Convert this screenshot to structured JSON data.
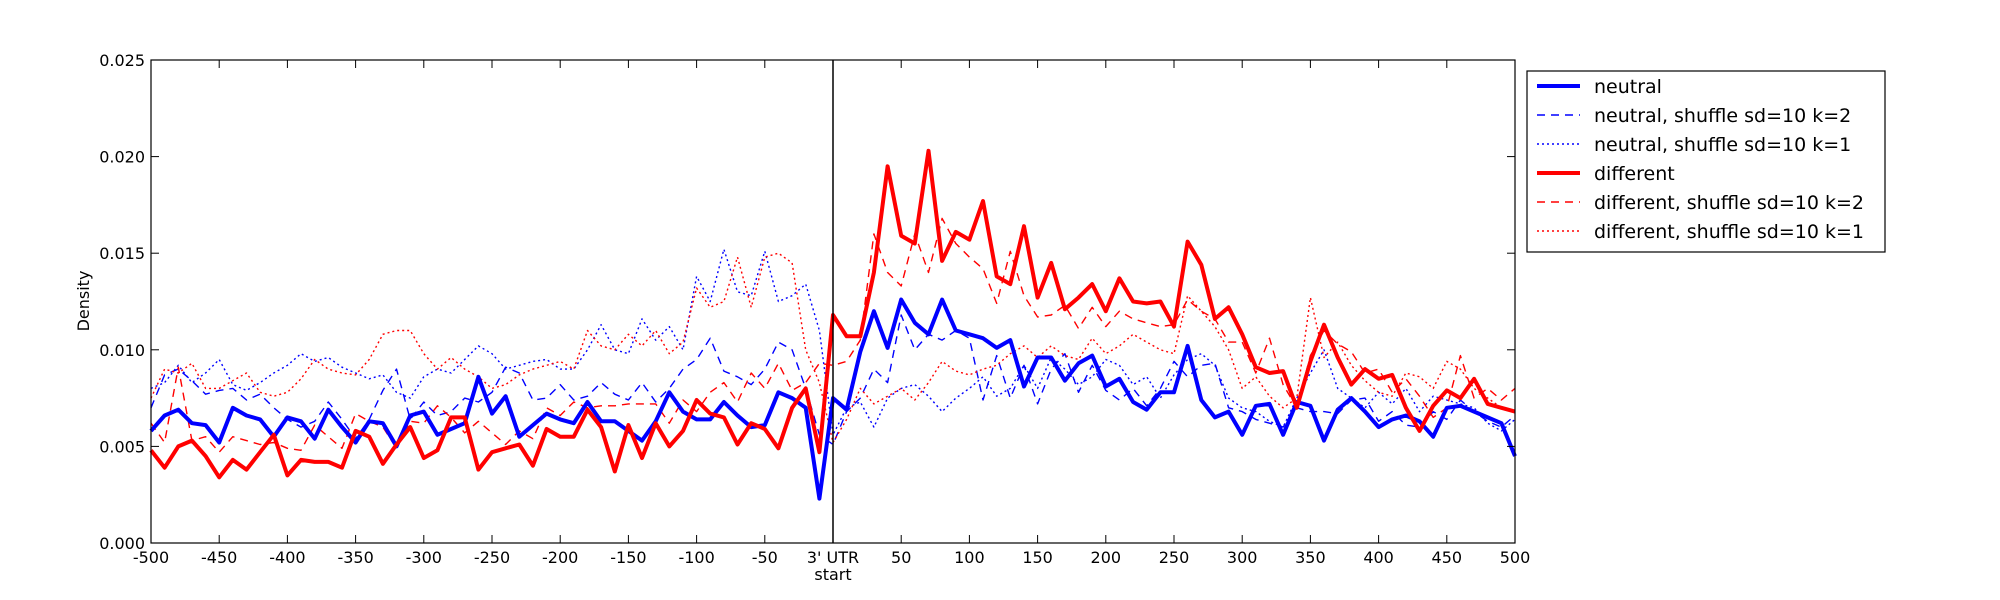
{
  "chart_data": {
    "type": "line",
    "title": "",
    "xlabel": "",
    "ylabel": "Density",
    "xlim": [
      -500,
      500
    ],
    "ylim": [
      0,
      0.025
    ],
    "x_ticks": [
      {
        "value": -500,
        "label": "-500"
      },
      {
        "value": -450,
        "label": "-450"
      },
      {
        "value": -400,
        "label": "-400"
      },
      {
        "value": -350,
        "label": "-350"
      },
      {
        "value": -300,
        "label": "-300"
      },
      {
        "value": -250,
        "label": "-250"
      },
      {
        "value": -200,
        "label": "-200"
      },
      {
        "value": -150,
        "label": "-150"
      },
      {
        "value": -100,
        "label": "-100"
      },
      {
        "value": -50,
        "label": "-50"
      },
      {
        "value": 0,
        "label": "3' UTR"
      },
      {
        "value": 50,
        "label": "50"
      },
      {
        "value": 100,
        "label": "100"
      },
      {
        "value": 150,
        "label": "150"
      },
      {
        "value": 200,
        "label": "200"
      },
      {
        "value": 250,
        "label": "250"
      },
      {
        "value": 300,
        "label": "300"
      },
      {
        "value": 350,
        "label": "350"
      },
      {
        "value": 400,
        "label": "400"
      },
      {
        "value": 450,
        "label": "450"
      },
      {
        "value": 500,
        "label": "500"
      }
    ],
    "x_center_sublabel": "start",
    "y_ticks": [
      {
        "value": 0,
        "label": "0.000"
      },
      {
        "value": 0.005,
        "label": "0.005"
      },
      {
        "value": 0.01,
        "label": "0.010"
      },
      {
        "value": 0.015,
        "label": "0.015"
      },
      {
        "value": 0.02,
        "label": "0.020"
      },
      {
        "value": 0.025,
        "label": "0.025"
      }
    ],
    "vline_x": 0,
    "grid": false,
    "legend_position": "outside right, top",
    "x": [
      -500,
      -490,
      -480,
      -470,
      -460,
      -450,
      -440,
      -430,
      -420,
      -410,
      -400,
      -390,
      -380,
      -370,
      -360,
      -350,
      -340,
      -330,
      -320,
      -310,
      -300,
      -290,
      -280,
      -270,
      -260,
      -250,
      -240,
      -230,
      -220,
      -210,
      -200,
      -190,
      -180,
      -170,
      -160,
      -150,
      -140,
      -130,
      -120,
      -110,
      -100,
      -90,
      -80,
      -70,
      -60,
      -50,
      -40,
      -30,
      -20,
      -10,
      0,
      10,
      20,
      30,
      40,
      50,
      60,
      70,
      80,
      90,
      100,
      110,
      120,
      130,
      140,
      150,
      160,
      170,
      180,
      190,
      200,
      210,
      220,
      230,
      240,
      250,
      260,
      270,
      280,
      290,
      300,
      310,
      320,
      330,
      340,
      350,
      360,
      370,
      380,
      390,
      400,
      410,
      420,
      430,
      440,
      450,
      460,
      470,
      480,
      490,
      500
    ],
    "series": [
      {
        "name": "neutral",
        "color": "#0000ff",
        "line_style": "solid-thick",
        "values": [
          0.0058,
          0.0066,
          0.0069,
          0.0062,
          0.0061,
          0.0052,
          0.007,
          0.0066,
          0.0064,
          0.0055,
          0.0065,
          0.0063,
          0.0054,
          0.0069,
          0.006,
          0.0052,
          0.0063,
          0.0062,
          0.005,
          0.0066,
          0.0068,
          0.0056,
          0.0059,
          0.0062,
          0.0086,
          0.0067,
          0.0076,
          0.0055,
          0.0061,
          0.0067,
          0.0064,
          0.0062,
          0.0073,
          0.0063,
          0.0063,
          0.0058,
          0.0053,
          0.0063,
          0.0078,
          0.0068,
          0.0064,
          0.0064,
          0.0073,
          0.0066,
          0.006,
          0.0061,
          0.0078,
          0.0075,
          0.007,
          0.0023,
          0.0075,
          0.0069,
          0.0099,
          0.012,
          0.0101,
          0.0126,
          0.0114,
          0.0108,
          0.0126,
          0.011,
          0.0108,
          0.0106,
          0.0101,
          0.0105,
          0.0081,
          0.0096,
          0.0096,
          0.0084,
          0.0093,
          0.0097,
          0.0081,
          0.0085,
          0.0073,
          0.0069,
          0.0078,
          0.0078,
          0.0102,
          0.0074,
          0.0065,
          0.0068,
          0.0056,
          0.0071,
          0.0072,
          0.0056,
          0.0073,
          0.0071,
          0.0053,
          0.0069,
          0.0075,
          0.0068,
          0.006,
          0.0064,
          0.0066,
          0.0063,
          0.0055,
          0.007,
          0.0071,
          0.0068,
          0.0065,
          0.0062,
          0.0045
        ]
      },
      {
        "name": "neutral, shuffle sd=10 k=2",
        "color": "#0000ff",
        "line_style": "dashed",
        "values": [
          0.007,
          0.0087,
          0.009,
          0.0084,
          0.0077,
          0.0079,
          0.008,
          0.0074,
          0.0077,
          0.007,
          0.0064,
          0.006,
          0.0063,
          0.0073,
          0.0064,
          0.0054,
          0.0064,
          0.0079,
          0.009,
          0.0064,
          0.0073,
          0.0066,
          0.0068,
          0.0075,
          0.0073,
          0.0078,
          0.0091,
          0.0088,
          0.0074,
          0.0075,
          0.0082,
          0.0074,
          0.0076,
          0.0083,
          0.0077,
          0.0074,
          0.0083,
          0.0073,
          0.008,
          0.009,
          0.0095,
          0.0106,
          0.0089,
          0.0086,
          0.0082,
          0.009,
          0.0104,
          0.01,
          0.008,
          0.0056,
          0.0051,
          0.0068,
          0.0075,
          0.009,
          0.0083,
          0.0118,
          0.01,
          0.0108,
          0.0105,
          0.011,
          0.0106,
          0.0074,
          0.0097,
          0.0075,
          0.0092,
          0.0072,
          0.009,
          0.0098,
          0.0078,
          0.0092,
          0.0079,
          0.0074,
          0.008,
          0.0071,
          0.008,
          0.0094,
          0.0086,
          0.0092,
          0.0093,
          0.007,
          0.0068,
          0.0064,
          0.0062,
          0.006,
          0.007,
          0.0068,
          0.0068,
          0.0067,
          0.0074,
          0.0075,
          0.0063,
          0.0068,
          0.0061,
          0.006,
          0.0068,
          0.0064,
          0.0074,
          0.0068,
          0.0063,
          0.006,
          0.0066
        ]
      },
      {
        "name": "neutral, shuffle sd=10 k=1",
        "color": "#0000ff",
        "line_style": "dotted",
        "values": [
          0.008,
          0.0083,
          0.0092,
          0.0083,
          0.0088,
          0.0095,
          0.0082,
          0.0079,
          0.0083,
          0.0088,
          0.0092,
          0.0098,
          0.0094,
          0.0096,
          0.0091,
          0.0088,
          0.0085,
          0.0087,
          0.0078,
          0.0075,
          0.0086,
          0.009,
          0.0088,
          0.0095,
          0.0102,
          0.0098,
          0.009,
          0.0092,
          0.0094,
          0.0095,
          0.009,
          0.009,
          0.01,
          0.0113,
          0.01,
          0.0098,
          0.0116,
          0.0105,
          0.0112,
          0.01,
          0.0138,
          0.0125,
          0.0152,
          0.013,
          0.0128,
          0.0151,
          0.0125,
          0.0128,
          0.0134,
          0.011,
          0.0056,
          0.007,
          0.0073,
          0.006,
          0.0075,
          0.008,
          0.0082,
          0.0076,
          0.0068,
          0.0075,
          0.008,
          0.0086,
          0.0076,
          0.008,
          0.0092,
          0.008,
          0.0096,
          0.009,
          0.0082,
          0.0086,
          0.0095,
          0.0092,
          0.0082,
          0.0086,
          0.0075,
          0.0087,
          0.0095,
          0.0098,
          0.0092,
          0.0075,
          0.007,
          0.0068,
          0.0063,
          0.006,
          0.0075,
          0.0088,
          0.01,
          0.008,
          0.0075,
          0.007,
          0.0078,
          0.0072,
          0.008,
          0.0068,
          0.0076,
          0.0074,
          0.0072,
          0.007,
          0.0062,
          0.0058,
          0.0064
        ]
      },
      {
        "name": "different",
        "color": "#ff0000",
        "line_style": "solid-thick",
        "values": [
          0.0048,
          0.0039,
          0.005,
          0.0053,
          0.0045,
          0.0034,
          0.0043,
          0.0038,
          0.0047,
          0.0056,
          0.0035,
          0.0043,
          0.0042,
          0.0042,
          0.0039,
          0.0058,
          0.0055,
          0.0041,
          0.0051,
          0.006,
          0.0044,
          0.0048,
          0.0065,
          0.0065,
          0.0038,
          0.0047,
          0.0049,
          0.0051,
          0.004,
          0.0059,
          0.0055,
          0.0055,
          0.0069,
          0.006,
          0.0037,
          0.0061,
          0.0044,
          0.0062,
          0.005,
          0.0058,
          0.0074,
          0.0067,
          0.0065,
          0.0051,
          0.0062,
          0.0059,
          0.0049,
          0.007,
          0.008,
          0.0047,
          0.0118,
          0.0107,
          0.0107,
          0.014,
          0.0195,
          0.0159,
          0.0155,
          0.0203,
          0.0146,
          0.0161,
          0.0157,
          0.0177,
          0.0138,
          0.0134,
          0.0164,
          0.0127,
          0.0145,
          0.0121,
          0.0127,
          0.0134,
          0.012,
          0.0137,
          0.0125,
          0.0124,
          0.0125,
          0.0112,
          0.0156,
          0.0144,
          0.0116,
          0.0122,
          0.0108,
          0.0091,
          0.0088,
          0.0089,
          0.007,
          0.0094,
          0.0113,
          0.0096,
          0.0082,
          0.009,
          0.0085,
          0.0087,
          0.007,
          0.0058,
          0.0071,
          0.0079,
          0.0075,
          0.0085,
          0.0072,
          0.007,
          0.0068
        ]
      },
      {
        "name": "different, shuffle sd=10 k=2",
        "color": "#ff0000",
        "line_style": "dashed",
        "values": [
          0.0062,
          0.0052,
          0.0091,
          0.0053,
          0.0055,
          0.0047,
          0.0055,
          0.0053,
          0.0051,
          0.0052,
          0.0049,
          0.0048,
          0.0061,
          0.0055,
          0.0049,
          0.0067,
          0.0063,
          0.006,
          0.0049,
          0.0063,
          0.0062,
          0.0071,
          0.0065,
          0.0057,
          0.0063,
          0.0057,
          0.0051,
          0.0058,
          0.0054,
          0.007,
          0.0066,
          0.0073,
          0.007,
          0.0071,
          0.0071,
          0.0072,
          0.0072,
          0.0072,
          0.0062,
          0.0074,
          0.0068,
          0.0078,
          0.0083,
          0.0073,
          0.0088,
          0.008,
          0.0093,
          0.0079,
          0.0083,
          0.0093,
          0.0092,
          0.0094,
          0.0105,
          0.016,
          0.014,
          0.0133,
          0.016,
          0.014,
          0.0168,
          0.0155,
          0.0148,
          0.0142,
          0.0124,
          0.0151,
          0.0128,
          0.0117,
          0.0118,
          0.0123,
          0.0111,
          0.0122,
          0.0112,
          0.012,
          0.0116,
          0.0114,
          0.0112,
          0.0113,
          0.0126,
          0.012,
          0.0116,
          0.0104,
          0.0104,
          0.0088,
          0.0106,
          0.0082,
          0.007,
          0.0097,
          0.011,
          0.0103,
          0.0099,
          0.0088,
          0.009,
          0.0078,
          0.0085,
          0.0076,
          0.0065,
          0.007,
          0.0097,
          0.0075,
          0.008,
          0.0074,
          0.008
        ]
      },
      {
        "name": "different, shuffle sd=10 k=1",
        "color": "#ff0000",
        "line_style": "dotted",
        "values": [
          0.0075,
          0.009,
          0.0088,
          0.0093,
          0.008,
          0.008,
          0.0084,
          0.0088,
          0.0078,
          0.0076,
          0.0078,
          0.0085,
          0.0095,
          0.009,
          0.0088,
          0.0087,
          0.0095,
          0.0108,
          0.011,
          0.011,
          0.0098,
          0.009,
          0.0096,
          0.009,
          0.0086,
          0.008,
          0.0082,
          0.0087,
          0.009,
          0.0092,
          0.0094,
          0.009,
          0.011,
          0.0102,
          0.01,
          0.0108,
          0.0102,
          0.011,
          0.0098,
          0.0104,
          0.0132,
          0.0122,
          0.0125,
          0.0148,
          0.0122,
          0.0148,
          0.015,
          0.0145,
          0.01,
          0.0083,
          0.0052,
          0.0064,
          0.008,
          0.0072,
          0.0076,
          0.008,
          0.0074,
          0.0083,
          0.0094,
          0.0089,
          0.0087,
          0.009,
          0.0092,
          0.0098,
          0.0102,
          0.0096,
          0.0102,
          0.0097,
          0.0095,
          0.0106,
          0.0098,
          0.0102,
          0.0108,
          0.0104,
          0.01,
          0.0098,
          0.0128,
          0.012,
          0.0112,
          0.01,
          0.008,
          0.0086,
          0.0076,
          0.007,
          0.0075,
          0.0127,
          0.0096,
          0.0104,
          0.0092,
          0.0084,
          0.0078,
          0.0076,
          0.0088,
          0.0086,
          0.008,
          0.0094,
          0.009,
          0.008,
          0.0075,
          0.007,
          0.0068
        ]
      }
    ]
  }
}
